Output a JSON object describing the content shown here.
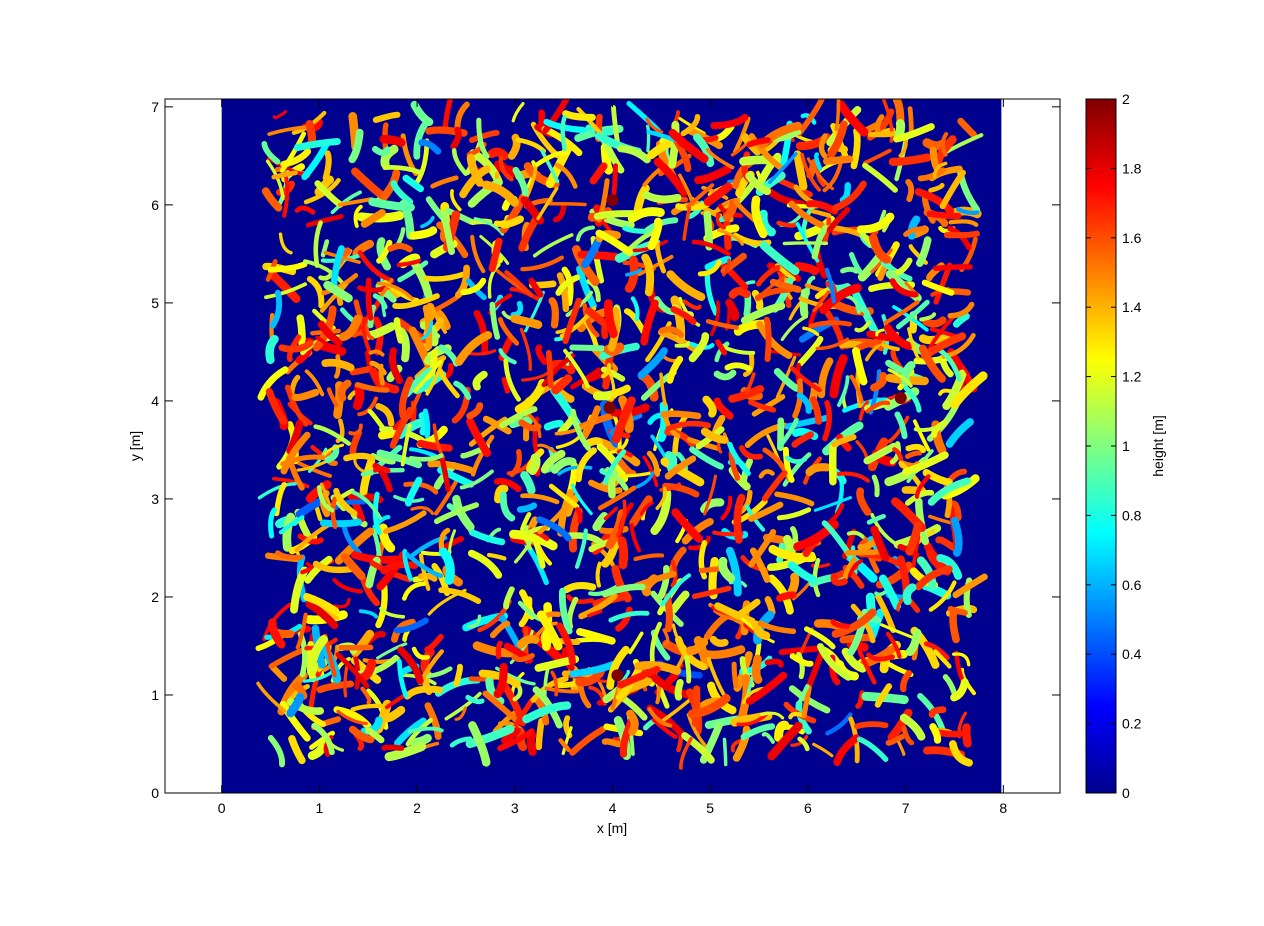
{
  "chart_data": {
    "type": "heatmap",
    "title": "",
    "xlabel": "x [m]",
    "ylabel": "y [m]",
    "xlim": [
      -0.58,
      8.58
    ],
    "ylim": [
      0,
      7.08
    ],
    "xticks": [
      "0",
      "1",
      "2",
      "3",
      "4",
      "5",
      "6",
      "7",
      "8"
    ],
    "yticks": [
      "0",
      "1",
      "2",
      "3",
      "4",
      "5",
      "6",
      "7"
    ],
    "data_extent": {
      "x": [
        0,
        7.98
      ],
      "y": [
        0,
        7.08
      ]
    },
    "plant_region": {
      "x": [
        0.5,
        7.75
      ],
      "y": [
        0.4,
        6.95
      ]
    },
    "plant_rows_x": [
      0.7,
      1.35,
      2.1,
      2.95,
      3.7,
      4.35,
      5.1,
      5.85,
      6.6,
      7.3
    ],
    "markers": [
      {
        "x": 4.0,
        "y": 6.05,
        "value": 2.0
      },
      {
        "x": 3.97,
        "y": 3.93,
        "value": 2.0
      },
      {
        "x": 6.95,
        "y": 4.03,
        "value": 2.0
      },
      {
        "x": 4.05,
        "y": 1.2,
        "value": 2.0
      }
    ],
    "colormap": "jet",
    "background_value": 0,
    "grid": false,
    "colorbar": {
      "label": "height [m]",
      "range": [
        0,
        2
      ],
      "ticks": [
        "0",
        "0.2",
        "0.4",
        "0.6",
        "0.8",
        "1",
        "1.2",
        "1.4",
        "1.6",
        "1.8",
        "2"
      ]
    }
  }
}
